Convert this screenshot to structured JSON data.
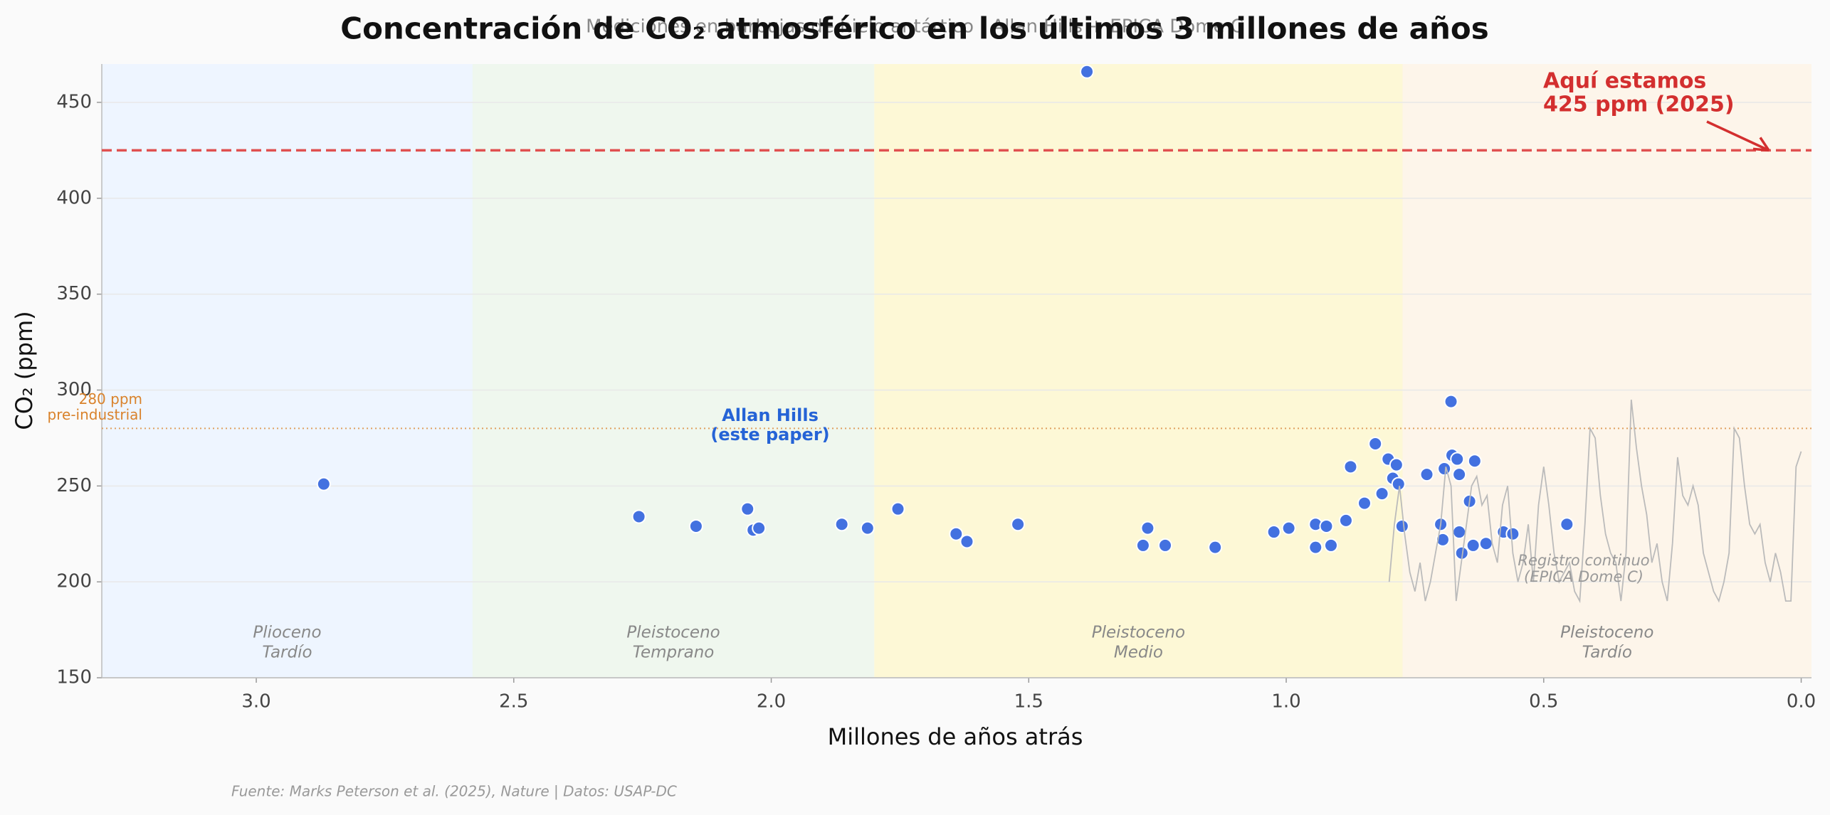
{
  "chart_data": {
    "type": "scatter",
    "title": "Concentración de CO₂ atmosférico en los últimos 3 millones de años",
    "subtitle": "Mediciones en burbujas de hielo antártico | Allan Hills + EPICA Dome C",
    "x_label": "Millones de años atrás",
    "y_label": "CO₂ (ppm)",
    "source": "Fuente: Marks Peterson et al. (2025), Nature | Datos: USAP-DC",
    "xlim": [
      3.3,
      -0.02
    ],
    "ylim": [
      150,
      470
    ],
    "xticks": [
      {
        "value": 3,
        "label": "3.0"
      },
      2.5,
      {
        "value": 2,
        "label": "2.0"
      },
      1.5,
      {
        "value": 1,
        "label": "1.0"
      },
      0.5,
      {
        "value": 0,
        "label": "0.0"
      }
    ],
    "yticks": [
      150,
      200,
      250,
      300,
      350,
      400,
      450
    ],
    "grid": true,
    "regions": [
      {
        "label": [
          "Plioceno",
          "Tardío"
        ],
        "start": 3.3,
        "end": 2.58,
        "color": "#eef5ff"
      },
      {
        "label": [
          "Pleistoceno",
          "Temprano"
        ],
        "start": 2.58,
        "end": 1.8,
        "color": "#eff7ee"
      },
      {
        "label": [
          "Pleistoceno",
          "Medio"
        ],
        "start": 1.8,
        "end": 0.774,
        "color": "#fdf8d6"
      },
      {
        "label": [
          "Pleistoceno",
          "Tardío"
        ],
        "start": 0.774,
        "end": -0.02,
        "color": "#fdf5ea"
      }
    ],
    "reference_lines": [
      {
        "value": 425,
        "color": "#e05050",
        "style": "dashed",
        "label": [
          "Aquí estamos",
          "425 ppm (2025)"
        ]
      },
      {
        "value": 280,
        "color": "#e0a060",
        "style": "dotted",
        "label": [
          "280 ppm",
          "pre-industrial"
        ]
      }
    ],
    "series": [
      {
        "name": [
          "Allan Hills",
          "(este paper)"
        ],
        "color": "#4371e0",
        "x": [
          2.869,
          2.257,
          2.146,
          2.046,
          2.035,
          2.024,
          1.863,
          1.813,
          1.754,
          1.641,
          1.62,
          1.521,
          1.387,
          1.278,
          1.269,
          1.235,
          1.138,
          1.024,
          0.995,
          0.943,
          0.943,
          0.922,
          0.913,
          0.884,
          0.875,
          0.848,
          0.827,
          0.814,
          0.802,
          0.793,
          0.786,
          0.782,
          0.775,
          0.727,
          0.7,
          0.696,
          0.693,
          0.68,
          0.678,
          0.668,
          0.664,
          0.664,
          0.659,
          0.644,
          0.637,
          0.634,
          0.612,
          0.578,
          0.56,
          0.455
        ],
        "values": [
          251,
          234,
          229,
          238,
          227,
          228,
          230,
          228,
          238,
          225,
          221,
          230,
          466,
          219,
          228,
          219,
          218,
          226,
          228,
          218,
          230,
          229,
          219,
          232,
          260,
          241,
          272,
          246,
          264,
          254,
          261,
          251,
          229,
          256,
          230,
          222,
          259,
          294,
          266,
          264,
          256,
          226,
          215,
          242,
          219,
          263,
          220,
          226,
          225,
          230
        ]
      },
      {
        "name": [
          "Registro continuo",
          "(EPICA Dome C)"
        ],
        "color": "#bbbbbb",
        "line": true,
        "x": [
          0.8,
          0.79,
          0.78,
          0.77,
          0.76,
          0.75,
          0.74,
          0.73,
          0.72,
          0.71,
          0.7,
          0.69,
          0.68,
          0.67,
          0.66,
          0.65,
          0.64,
          0.63,
          0.62,
          0.61,
          0.6,
          0.59,
          0.58,
          0.57,
          0.56,
          0.55,
          0.54,
          0.53,
          0.52,
          0.51,
          0.5,
          0.49,
          0.48,
          0.47,
          0.46,
          0.45,
          0.44,
          0.43,
          0.42,
          0.41,
          0.4,
          0.39,
          0.38,
          0.37,
          0.36,
          0.35,
          0.34,
          0.33,
          0.32,
          0.31,
          0.3,
          0.29,
          0.28,
          0.27,
          0.26,
          0.25,
          0.24,
          0.23,
          0.22,
          0.21,
          0.2,
          0.19,
          0.18,
          0.17,
          0.16,
          0.15,
          0.14,
          0.13,
          0.12,
          0.11,
          0.1,
          0.09,
          0.08,
          0.07,
          0.06,
          0.05,
          0.04,
          0.03,
          0.02,
          0.01,
          0
        ],
        "values": [
          200,
          230,
          250,
          225,
          205,
          195,
          210,
          190,
          200,
          215,
          230,
          260,
          250,
          190,
          210,
          230,
          250,
          255,
          240,
          245,
          220,
          210,
          240,
          250,
          215,
          200,
          210,
          230,
          200,
          240,
          260,
          240,
          215,
          200,
          205,
          210,
          195,
          190,
          230,
          280,
          275,
          245,
          225,
          215,
          210,
          190,
          215,
          295,
          270,
          250,
          235,
          210,
          220,
          200,
          190,
          220,
          265,
          245,
          240,
          250,
          240,
          215,
          205,
          195,
          190,
          200,
          215,
          280,
          275,
          250,
          230,
          225,
          230,
          210,
          200,
          215,
          205,
          190,
          190,
          260,
          268
        ]
      }
    ]
  }
}
